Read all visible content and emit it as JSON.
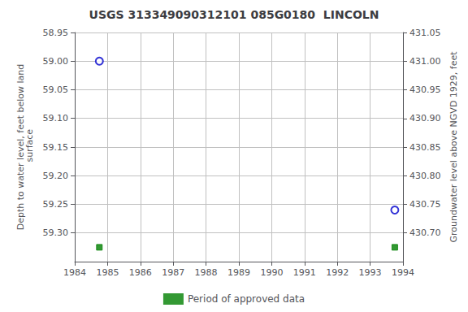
{
  "chart_data": {
    "type": "scatter",
    "title": "USGS 313349090312101 085G0180  LINCOLN",
    "x_label": null,
    "y_label": "Depth to water level, feet below land\n surface",
    "y2_label": "Groundwater level above NGVD 1929, feet",
    "x": [
      1984.75,
      1993.75
    ],
    "xlim": [
      1984,
      1994
    ],
    "xticks": [
      1984,
      1985,
      1986,
      1987,
      1988,
      1989,
      1990,
      1991,
      1992,
      1993,
      1994
    ],
    "ylim": [
      59.35,
      58.95
    ],
    "yticks": [
      58.95,
      {
        "value": 59.0,
        "label": "59.00"
      },
      59.05,
      {
        "value": 59.1,
        "label": "59.10"
      },
      59.15,
      {
        "value": 59.2,
        "label": "59.20"
      },
      59.25,
      {
        "value": 59.3,
        "label": "59.30"
      }
    ],
    "y2lim": [
      430.65,
      431.05
    ],
    "y2ticks": [
      431.05,
      {
        "value": 431.0,
        "label": "431.00"
      },
      430.95,
      {
        "value": 430.9,
        "label": "430.90"
      },
      430.85,
      {
        "value": 430.8,
        "label": "430.80"
      },
      430.75,
      {
        "value": 430.7,
        "label": "430.70"
      }
    ],
    "grid": true,
    "legend": "bottom",
    "series": [
      {
        "marker": "open_circle",
        "color": "#0000cc",
        "values": [
          59.0,
          59.26
        ]
      },
      {
        "name": "Period of approved data",
        "marker": "square",
        "color": "#008000",
        "values": [
          59.325,
          59.325
        ]
      }
    ],
    "background_color": "#ffffff",
    "grid_color": "#c0c0c0"
  }
}
